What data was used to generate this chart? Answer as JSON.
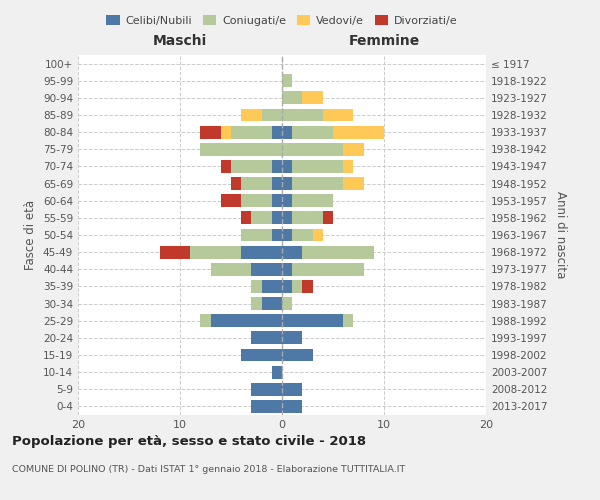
{
  "age_groups": [
    "100+",
    "95-99",
    "90-94",
    "85-89",
    "80-84",
    "75-79",
    "70-74",
    "65-69",
    "60-64",
    "55-59",
    "50-54",
    "45-49",
    "40-44",
    "35-39",
    "30-34",
    "25-29",
    "20-24",
    "15-19",
    "10-14",
    "5-9",
    "0-4"
  ],
  "birth_years": [
    "≤ 1917",
    "1918-1922",
    "1923-1927",
    "1928-1932",
    "1933-1937",
    "1938-1942",
    "1943-1947",
    "1948-1952",
    "1953-1957",
    "1958-1962",
    "1963-1967",
    "1968-1972",
    "1973-1977",
    "1978-1982",
    "1983-1987",
    "1988-1992",
    "1993-1997",
    "1998-2002",
    "2003-2007",
    "2008-2012",
    "2013-2017"
  ],
  "colors": {
    "celibi": "#4e79a7",
    "coniugati": "#b5c99a",
    "vedovi": "#ffc857",
    "divorziati": "#c0392b"
  },
  "maschi": {
    "celibi": [
      0,
      0,
      0,
      0,
      1,
      0,
      1,
      1,
      1,
      1,
      1,
      4,
      3,
      2,
      2,
      7,
      3,
      4,
      1,
      3,
      3
    ],
    "coniugati": [
      0,
      0,
      0,
      2,
      4,
      8,
      4,
      3,
      3,
      2,
      3,
      5,
      4,
      1,
      1,
      1,
      0,
      0,
      0,
      0,
      0
    ],
    "vedovi": [
      0,
      0,
      0,
      2,
      1,
      0,
      0,
      0,
      0,
      0,
      0,
      0,
      0,
      0,
      0,
      0,
      0,
      0,
      0,
      0,
      0
    ],
    "divorziati": [
      0,
      0,
      0,
      0,
      2,
      0,
      1,
      1,
      2,
      1,
      0,
      3,
      0,
      0,
      0,
      0,
      0,
      0,
      0,
      0,
      0
    ]
  },
  "femmine": {
    "celibi": [
      0,
      0,
      0,
      0,
      1,
      0,
      1,
      1,
      1,
      1,
      1,
      2,
      1,
      1,
      0,
      6,
      2,
      3,
      0,
      2,
      2
    ],
    "coniugati": [
      0,
      1,
      2,
      4,
      4,
      6,
      5,
      5,
      4,
      3,
      2,
      7,
      7,
      1,
      1,
      1,
      0,
      0,
      0,
      0,
      0
    ],
    "vedovi": [
      0,
      0,
      2,
      3,
      5,
      2,
      1,
      2,
      0,
      0,
      1,
      0,
      0,
      0,
      0,
      0,
      0,
      0,
      0,
      0,
      0
    ],
    "divorziati": [
      0,
      0,
      0,
      0,
      0,
      0,
      0,
      0,
      0,
      1,
      0,
      0,
      0,
      1,
      0,
      0,
      0,
      0,
      0,
      0,
      0
    ]
  },
  "xlim": 20,
  "title": "Popolazione per età, sesso e stato civile - 2018",
  "subtitle": "COMUNE DI POLINO (TR) - Dati ISTAT 1° gennaio 2018 - Elaborazione TUTTITALIA.IT",
  "ylabel_left": "Fasce di età",
  "ylabel_right": "Anni di nascita",
  "xlabel_left": "Maschi",
  "xlabel_right": "Femmine",
  "legend_labels": [
    "Celibi/Nubili",
    "Coniugati/e",
    "Vedovi/e",
    "Divorziati/e"
  ],
  "bg_color": "#f0f0f0",
  "bar_bg_color": "#ffffff"
}
